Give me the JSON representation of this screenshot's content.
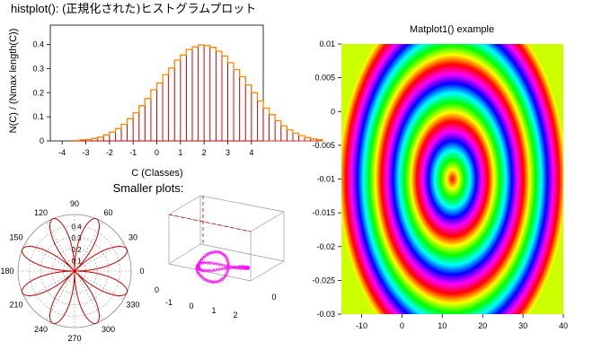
{
  "histogram": {
    "title_prefix": "histplot(): (",
    "title_jp": "正規化された)ヒストグラムプロット",
    "xlabel": "C (Classes)",
    "ylabel": "N(C) / (Nmax length(C))"
  },
  "section": {
    "small_title": "Smaller plots:"
  },
  "colors": {
    "histbar": "#cc0000",
    "curve": "#ff8800",
    "polar": "#cc0000",
    "knot": "#ff00ff",
    "axis": "#000000"
  },
  "chart_data": [
    {
      "type": "bar",
      "title": "histplot(): (正規化された)ヒストグラムプロット",
      "xlabel": "C (Classes)",
      "ylabel": "N(C) / (Nmax length(C))",
      "xlim": [
        -4.5,
        4.5
      ],
      "ylim": [
        0,
        0.48
      ],
      "xticks": [
        -4,
        -3,
        -2,
        -1,
        0,
        1,
        2,
        3,
        4
      ],
      "yticks": [
        0,
        0.1,
        0.2,
        0.3,
        0.4
      ],
      "bin_width": 0.25,
      "bins_start": -3.5,
      "values": [
        0.002,
        0.004,
        0.006,
        0.01,
        0.016,
        0.025,
        0.036,
        0.051,
        0.069,
        0.092,
        0.117,
        0.146,
        0.176,
        0.212,
        0.24,
        0.274,
        0.302,
        0.335,
        0.356,
        0.379,
        0.39,
        0.398,
        0.396,
        0.388,
        0.372,
        0.352,
        0.324,
        0.296,
        0.266,
        0.232,
        0.2,
        0.166,
        0.136,
        0.109,
        0.084,
        0.063,
        0.046,
        0.032,
        0.022,
        0.014,
        0.008,
        0.005
      ]
    },
    {
      "type": "heatmap",
      "title": "Matplot1() example",
      "xlim": [
        -15,
        40
      ],
      "ylim": [
        -0.03,
        0.01
      ],
      "xticks": [
        -10,
        0,
        10,
        20,
        30,
        40
      ],
      "yticks": [
        -0.03,
        -0.025,
        -0.02,
        -0.015,
        -0.01,
        -0.005,
        0,
        0.005,
        0.01
      ],
      "center": [
        12.5,
        -0.01
      ],
      "colormap": "hsv",
      "rings": 3.2
    },
    {
      "type": "polar",
      "title": "",
      "function": "r = sin(4θ)·0.5 (rose)",
      "petals": 8,
      "r_max": 0.5,
      "r_ticks": [
        "0.1",
        "0.2",
        "0.3",
        "0.4"
      ],
      "angle_labels": [
        "0",
        "30",
        "60",
        "90",
        "120",
        "150",
        "180",
        "210",
        "240",
        "270",
        "300",
        "330"
      ]
    },
    {
      "type": "scatter",
      "title": "",
      "projection": "3d",
      "x_ticks": [
        "-1",
        "0",
        "1",
        "2"
      ],
      "y_ticks": [
        "0"
      ],
      "z_ticks": [
        "0"
      ],
      "marker": "star"
    }
  ]
}
